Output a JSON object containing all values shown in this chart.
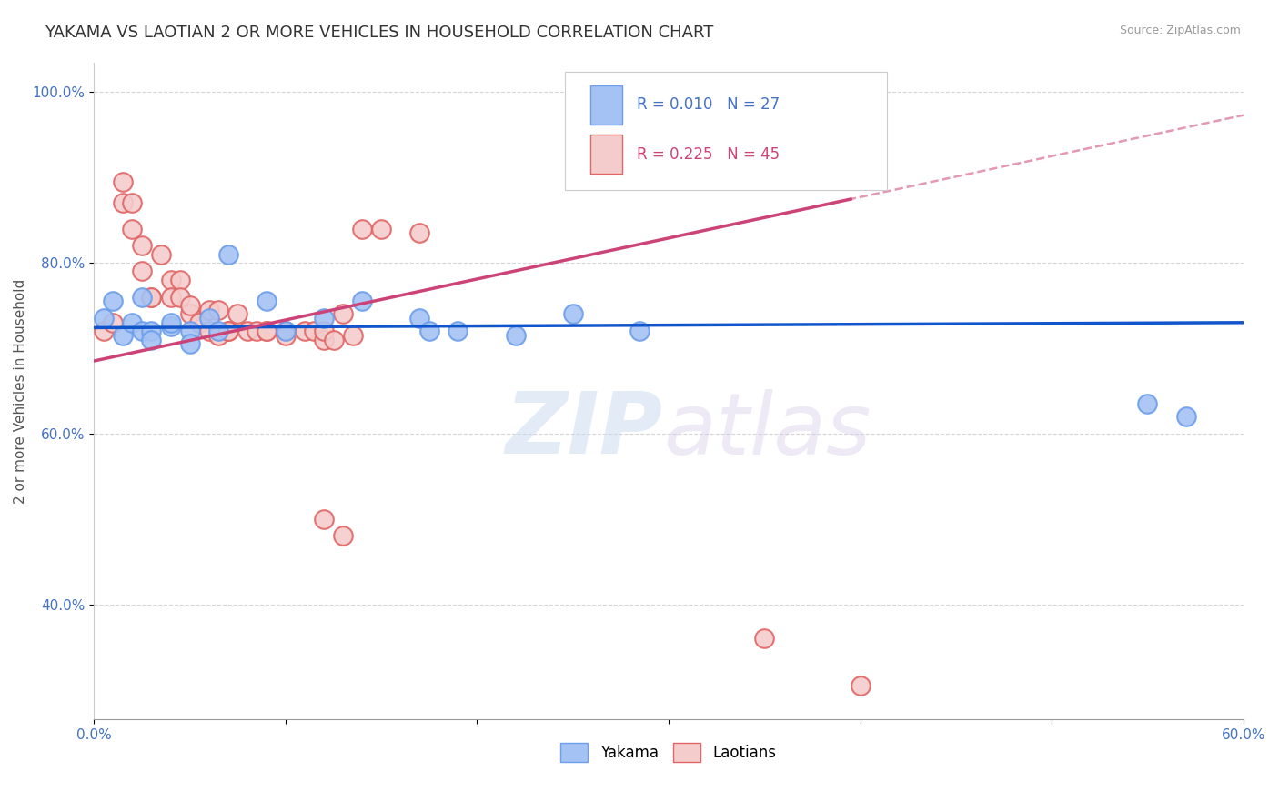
{
  "title": "YAKAMA VS LAOTIAN 2 OR MORE VEHICLES IN HOUSEHOLD CORRELATION CHART",
  "source": "Source: ZipAtlas.com",
  "ylabel": "2 or more Vehicles in Household",
  "xmin": 0.0,
  "xmax": 0.6,
  "ymin": 0.265,
  "ymax": 1.035,
  "xtick_positions": [
    0.0,
    0.1,
    0.2,
    0.3,
    0.4,
    0.5,
    0.6
  ],
  "xtick_labels": [
    "0.0%",
    "",
    "",
    "",
    "",
    "",
    "60.0%"
  ],
  "ytick_positions": [
    0.4,
    0.6,
    0.8,
    1.0
  ],
  "ytick_labels": [
    "40.0%",
    "60.0%",
    "80.0%",
    "100.0%"
  ],
  "title_fontsize": 13,
  "axis_label_fontsize": 11,
  "tick_fontsize": 11,
  "background_color": "#ffffff",
  "yakama_color": "#a4c2f4",
  "laotian_color": "#f4cccc",
  "yakama_edge_color": "#6d9eeb",
  "laotian_edge_color": "#e06666",
  "regression_yakama_color": "#1155cc",
  "regression_laotian_color": "#cc4477",
  "yakama_R": 0.01,
  "yakama_N": 27,
  "laotian_R": 0.225,
  "laotian_N": 45,
  "legend_label_yakama": "Yakama",
  "legend_label_laotian": "Laotians",
  "watermark_zip": "ZIP",
  "watermark_atlas": "atlas",
  "yakama_x": [
    0.005,
    0.01,
    0.015,
    0.02,
    0.025,
    0.025,
    0.03,
    0.03,
    0.04,
    0.04,
    0.05,
    0.05,
    0.06,
    0.065,
    0.07,
    0.09,
    0.1,
    0.12,
    0.14,
    0.17,
    0.175,
    0.19,
    0.22,
    0.25,
    0.285,
    0.55,
    0.57
  ],
  "yakama_y": [
    0.735,
    0.755,
    0.715,
    0.73,
    0.72,
    0.76,
    0.72,
    0.71,
    0.725,
    0.73,
    0.72,
    0.705,
    0.735,
    0.72,
    0.81,
    0.755,
    0.72,
    0.735,
    0.755,
    0.735,
    0.72,
    0.72,
    0.715,
    0.74,
    0.72,
    0.635,
    0.62
  ],
  "laotian_x": [
    0.005,
    0.01,
    0.015,
    0.015,
    0.02,
    0.02,
    0.025,
    0.025,
    0.03,
    0.03,
    0.035,
    0.04,
    0.04,
    0.045,
    0.045,
    0.05,
    0.05,
    0.055,
    0.06,
    0.06,
    0.065,
    0.065,
    0.07,
    0.07,
    0.075,
    0.08,
    0.085,
    0.09,
    0.09,
    0.1,
    0.1,
    0.11,
    0.115,
    0.12,
    0.12,
    0.125,
    0.13,
    0.135,
    0.14,
    0.15,
    0.17,
    0.35,
    0.4,
    0.12,
    0.13
  ],
  "laotian_y": [
    0.72,
    0.73,
    0.87,
    0.895,
    0.87,
    0.84,
    0.82,
    0.79,
    0.76,
    0.76,
    0.81,
    0.78,
    0.76,
    0.78,
    0.76,
    0.74,
    0.75,
    0.73,
    0.745,
    0.72,
    0.745,
    0.715,
    0.72,
    0.72,
    0.74,
    0.72,
    0.72,
    0.72,
    0.72,
    0.72,
    0.715,
    0.72,
    0.72,
    0.71,
    0.72,
    0.71,
    0.74,
    0.715,
    0.84,
    0.84,
    0.835,
    0.36,
    0.305,
    0.5,
    0.48
  ]
}
